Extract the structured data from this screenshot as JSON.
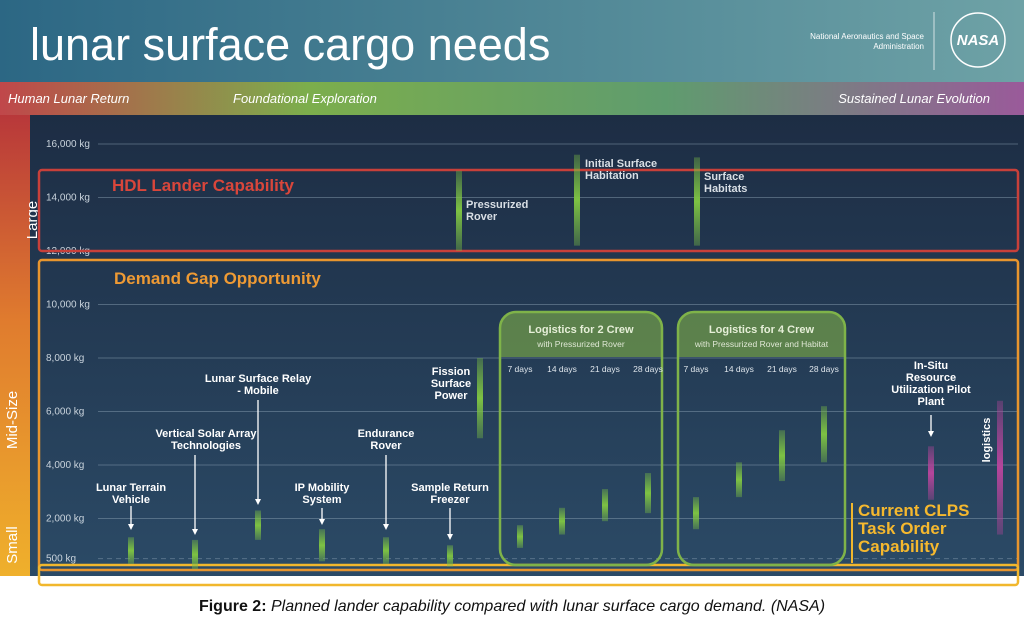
{
  "header": {
    "title": "lunar surface cargo needs",
    "agency": "National Aeronautics and Space Administration",
    "logo": "NASA"
  },
  "phases": [
    "Human Lunar Return",
    "Foundational Exploration",
    "Sustained Lunar Evolution"
  ],
  "chart_data": {
    "type": "range",
    "size_classes": [
      "Large",
      "Mid-Size",
      "Small"
    ],
    "ylim": [
      0,
      17000
    ],
    "yticks": [
      {
        "value": 500,
        "label": "500 kg"
      },
      {
        "value": 2000,
        "label": "2,000 kg"
      },
      {
        "value": 4000,
        "label": "4,000 kg"
      },
      {
        "value": 6000,
        "label": "6,000 kg"
      },
      {
        "value": 8000,
        "label": "8,000 kg"
      },
      {
        "value": 10000,
        "label": "10,000 kg"
      },
      {
        "value": 12000,
        "label": "12,000 kg"
      },
      {
        "value": 14000,
        "label": "14,000 kg"
      },
      {
        "value": 16000,
        "label": "16,000 kg"
      }
    ],
    "grid": true,
    "regions": [
      {
        "label": "HDL Lander Capability"
      },
      {
        "label": "Demand Gap Opportunity"
      },
      {
        "label": "Current CLPS Task Order Capability"
      }
    ],
    "items": [
      {
        "label": "Lunar Terrain Vehicle",
        "values": [
          300,
          1300
        ],
        "color": "#7dc243"
      },
      {
        "label": "Vertical Solar Array Technologies",
        "values": [
          100,
          1200
        ],
        "color": "#7dc243"
      },
      {
        "label": "Lunar Surface Relay - Mobile",
        "values": [
          1200,
          2300
        ],
        "color": "#7dc243"
      },
      {
        "label": "IP Mobility System",
        "values": [
          400,
          1600
        ],
        "color": "#7dc243"
      },
      {
        "label": "Endurance Rover",
        "values": [
          300,
          1300
        ],
        "color": "#7dc243"
      },
      {
        "label": "Sample Return Freezer",
        "values": [
          200,
          1000
        ],
        "color": "#7dc243"
      },
      {
        "label": "Fission Surface Power",
        "values": [
          5000,
          8000
        ],
        "color": "#7dc243"
      },
      {
        "label": "Pressurized Rover",
        "values": [
          12000,
          15000
        ],
        "color": "#7dc243"
      },
      {
        "label": "Initial Surface Habitation",
        "values": [
          12200,
          15600
        ],
        "color": "#7dc243"
      },
      {
        "label": "Surface Habitats",
        "values": [
          12200,
          15500
        ],
        "color": "#7dc243"
      },
      {
        "label": "In-Situ Resource Utilization Pilot Plant",
        "values": [
          2700,
          4700
        ],
        "color": "#b5459b"
      },
      {
        "label": "logistics",
        "values": [
          1400,
          6400
        ],
        "color": "#b5459b"
      }
    ],
    "groups": [
      {
        "title": "Logistics for 2 Crew",
        "subtitle": "with Pressurized Rover",
        "items": [
          {
            "label": "7 days",
            "values": [
              900,
              1750
            ],
            "color": "#7dc243"
          },
          {
            "label": "14 days",
            "values": [
              1400,
              2400
            ],
            "color": "#7dc243"
          },
          {
            "label": "21 days",
            "values": [
              1900,
              3100
            ],
            "color": "#7dc243"
          },
          {
            "label": "28 days",
            "values": [
              2200,
              3700
            ],
            "color": "#7dc243"
          }
        ]
      },
      {
        "title": "Logistics for 4 Crew",
        "subtitle": "with Pressurized Rover and Habitat",
        "items": [
          {
            "label": "7 days",
            "values": [
              1600,
              2800
            ],
            "color": "#7dc243"
          },
          {
            "label": "14 days",
            "values": [
              2800,
              4100
            ],
            "color": "#7dc243"
          },
          {
            "label": "21 days",
            "values": [
              3400,
              5300
            ],
            "color": "#7dc243"
          },
          {
            "label": "28 days",
            "values": [
              4100,
              6200
            ],
            "color": "#7dc243"
          }
        ]
      }
    ]
  },
  "caption": {
    "label": "Figure 2:",
    "text": "Planned lander capability compared with lunar surface cargo demand.  (NASA)"
  }
}
